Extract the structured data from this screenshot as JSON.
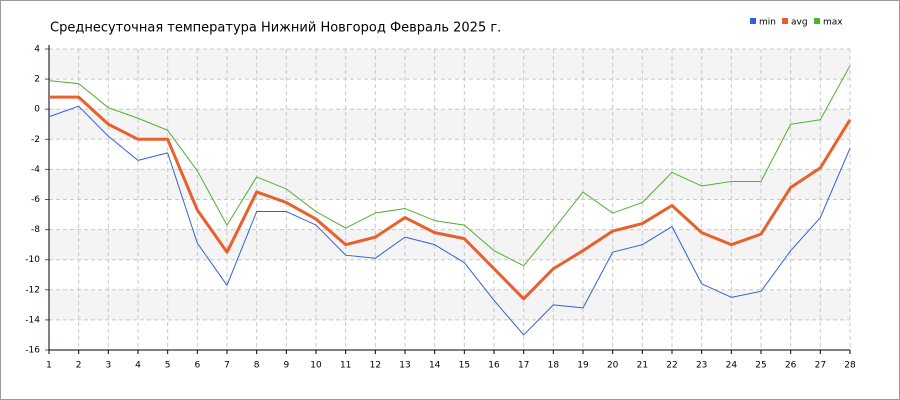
{
  "chart_data": {
    "type": "line",
    "title": "Среднесуточная температура Нижний Новгород  Февраль 2025 г.",
    "x": [
      1,
      2,
      3,
      4,
      5,
      6,
      7,
      8,
      9,
      10,
      11,
      12,
      13,
      14,
      15,
      16,
      17,
      18,
      19,
      20,
      21,
      22,
      23,
      24,
      25,
      26,
      27,
      28
    ],
    "xlim": [
      1,
      28
    ],
    "xticks": [
      1,
      2,
      3,
      4,
      5,
      6,
      7,
      8,
      9,
      10,
      11,
      12,
      13,
      14,
      15,
      16,
      17,
      18,
      19,
      20,
      21,
      22,
      23,
      24,
      25,
      26,
      27,
      28
    ],
    "ylim": [
      -16,
      4
    ],
    "yticks": [
      -16,
      -14,
      -12,
      -10,
      -8,
      -6,
      -4,
      -2,
      0,
      2,
      4
    ],
    "grid": true,
    "legend": "top-right",
    "series": [
      {
        "name": "min",
        "color": "#3060e0",
        "values": [
          -0.5,
          0.2,
          -1.8,
          -3.4,
          -2.9,
          -8.9,
          -11.7,
          -6.8,
          -6.8,
          -7.7,
          -9.7,
          -9.9,
          -8.5,
          -9.0,
          -10.2,
          -12.7,
          -15.0,
          -13.0,
          -13.2,
          -9.5,
          -9.0,
          -7.8,
          -11.6,
          -12.5,
          -12.1,
          -9.4,
          -7.2,
          -2.6
        ]
      },
      {
        "name": "avg",
        "color": "#e8602c",
        "values": [
          0.8,
          0.8,
          -1.0,
          -2.0,
          -2.0,
          -6.7,
          -9.5,
          -5.5,
          -6.2,
          -7.3,
          -9.0,
          -8.5,
          -7.2,
          -8.2,
          -8.6,
          -10.6,
          -12.6,
          -10.6,
          -9.4,
          -8.1,
          -7.6,
          -6.4,
          -8.2,
          -9.0,
          -8.3,
          -5.2,
          -3.9,
          -0.7
        ]
      },
      {
        "name": "max",
        "color": "#50b030",
        "values": [
          1.9,
          1.7,
          0.1,
          -0.6,
          -1.4,
          -4.1,
          -7.7,
          -4.5,
          -5.3,
          -6.8,
          -7.9,
          -6.9,
          -6.6,
          -7.4,
          -7.7,
          -9.4,
          -10.4,
          -8.0,
          -5.5,
          -6.9,
          -6.2,
          -4.2,
          -5.1,
          -4.8,
          -4.8,
          -1.0,
          -0.7,
          2.9
        ]
      }
    ]
  }
}
